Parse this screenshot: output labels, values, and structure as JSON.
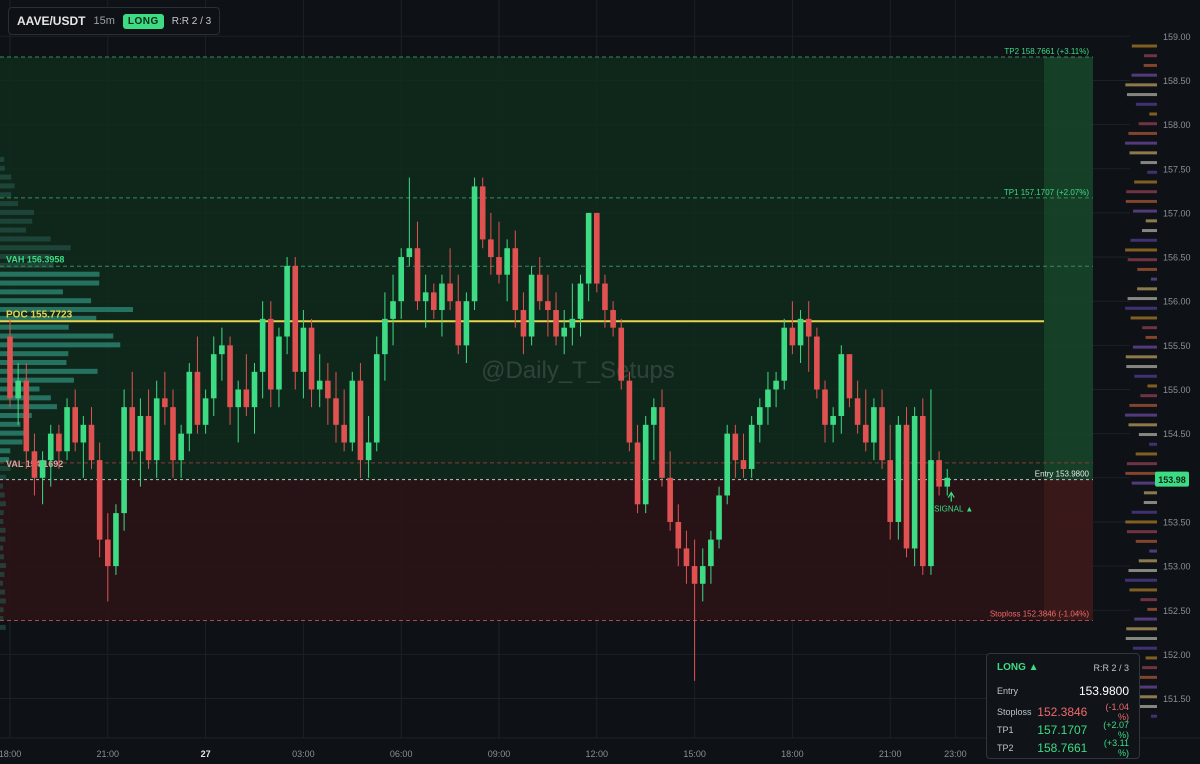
{
  "header": {
    "symbol": "AAVE/USDT",
    "timeframe": "15m",
    "side": "LONG",
    "rr": "R:R 2 / 3"
  },
  "watermark": "@Daily_T_Setups",
  "colors": {
    "up": "#3ddc84",
    "down": "#e05252",
    "poc": "#e8d44d",
    "target_zone": "#0f2b1c",
    "stop_zone": "#2a1416",
    "bg": "#0e1116"
  },
  "levels": {
    "tp2": {
      "price": 158.7661,
      "label": "TP2 158.7661 (+3.11%)"
    },
    "tp1": {
      "price": 157.1707,
      "label": "TP1 157.1707 (+2.07%)"
    },
    "vah": {
      "price": 156.3958,
      "label": "VAH 156.3958"
    },
    "poc": {
      "price": 155.7723,
      "label": "POC 155.7723"
    },
    "val": {
      "price": 154.1692,
      "label": "VAL 154.1692"
    },
    "entry": {
      "price": 153.98,
      "label": "Entry 153.9800",
      "tag": "153.98"
    },
    "stop": {
      "price": 152.3846,
      "label": "Stoploss 152.3846 (-1.04%)"
    }
  },
  "signal_label": "SIGNAL ▲",
  "trade_panel": {
    "side": "LONG ▲",
    "rr": "R:R 2 / 3",
    "rows": [
      {
        "label": "Entry",
        "value": "153.9800",
        "pct": ""
      },
      {
        "label": "Stoploss",
        "value": "152.3846",
        "pct": "(-1.04 %)"
      },
      {
        "label": "TP1",
        "value": "157.1707",
        "pct": "(+2.07 %)"
      },
      {
        "label": "TP2",
        "value": "158.7661",
        "pct": "(+3.11 %)"
      }
    ]
  },
  "chart_data": {
    "type": "candlestick",
    "ylim": [
      151.2,
      159.2
    ],
    "y_ticks": [
      151.5,
      152.0,
      152.5,
      153.0,
      153.5,
      154.0,
      154.5,
      155.0,
      155.5,
      156.0,
      156.5,
      157.0,
      157.5,
      158.0,
      158.5,
      159.0
    ],
    "y_tick_labels": [
      "151.50",
      "152.00",
      "152.50",
      "153.00",
      "153.50",
      "154.00",
      "154.50",
      "155.00",
      "155.50",
      "156.00",
      "156.50",
      "157.00",
      "157.50",
      "158.00",
      "158.50",
      "159.00"
    ],
    "x_ticks": [
      {
        "label": "18:00",
        "bar": 0
      },
      {
        "label": "21:00",
        "bar": 12
      },
      {
        "label": "27",
        "bar": 24,
        "bold": true
      },
      {
        "label": "03:00",
        "bar": 36
      },
      {
        "label": "06:00",
        "bar": 48
      },
      {
        "label": "09:00",
        "bar": 60
      },
      {
        "label": "12:00",
        "bar": 72
      },
      {
        "label": "15:00",
        "bar": 84
      },
      {
        "label": "18:00",
        "bar": 96
      },
      {
        "label": "21:00",
        "bar": 108
      },
      {
        "label": "23:00",
        "bar": 116
      }
    ],
    "ohlc": [
      [
        155.6,
        155.8,
        154.8,
        154.9
      ],
      [
        154.9,
        155.3,
        154.6,
        155.1
      ],
      [
        155.1,
        155.3,
        154.1,
        154.3
      ],
      [
        154.3,
        154.5,
        153.8,
        154.0
      ],
      [
        154.0,
        154.3,
        153.7,
        154.2
      ],
      [
        154.2,
        154.6,
        153.9,
        154.5
      ],
      [
        154.5,
        154.6,
        154.1,
        154.3
      ],
      [
        154.3,
        154.9,
        154.2,
        154.8
      ],
      [
        154.8,
        155.0,
        154.3,
        154.4
      ],
      [
        154.4,
        154.7,
        154.0,
        154.6
      ],
      [
        154.6,
        154.8,
        154.1,
        154.2
      ],
      [
        154.2,
        154.4,
        153.1,
        153.3
      ],
      [
        153.3,
        153.6,
        152.6,
        153.0
      ],
      [
        153.0,
        153.7,
        152.9,
        153.6
      ],
      [
        153.6,
        155.0,
        153.4,
        154.8
      ],
      [
        154.8,
        155.2,
        154.2,
        154.3
      ],
      [
        154.3,
        154.9,
        153.9,
        154.7
      ],
      [
        154.7,
        155.0,
        154.1,
        154.2
      ],
      [
        154.2,
        155.1,
        154.0,
        154.9
      ],
      [
        154.9,
        155.2,
        154.6,
        154.8
      ],
      [
        154.8,
        155.0,
        154.0,
        154.2
      ],
      [
        154.2,
        154.6,
        154.0,
        154.5
      ],
      [
        154.5,
        155.3,
        154.3,
        155.2
      ],
      [
        155.2,
        155.6,
        154.5,
        154.6
      ],
      [
        154.6,
        155.0,
        154.5,
        154.9
      ],
      [
        154.9,
        155.6,
        154.7,
        155.4
      ],
      [
        155.4,
        155.7,
        155.1,
        155.5
      ],
      [
        155.5,
        155.6,
        154.6,
        154.8
      ],
      [
        154.8,
        155.1,
        154.4,
        155.0
      ],
      [
        155.0,
        155.4,
        154.7,
        154.8
      ],
      [
        154.8,
        155.3,
        154.5,
        155.2
      ],
      [
        155.2,
        156.0,
        154.9,
        155.8
      ],
      [
        155.8,
        156.0,
        154.8,
        155.0
      ],
      [
        155.0,
        155.7,
        154.8,
        155.6
      ],
      [
        155.6,
        156.5,
        155.4,
        156.4
      ],
      [
        156.4,
        156.5,
        155.0,
        155.2
      ],
      [
        155.2,
        155.9,
        154.9,
        155.7
      ],
      [
        155.7,
        155.8,
        154.8,
        155.0
      ],
      [
        155.0,
        155.4,
        154.8,
        155.1
      ],
      [
        155.1,
        155.3,
        154.6,
        154.9
      ],
      [
        154.9,
        155.2,
        154.4,
        154.6
      ],
      [
        154.6,
        155.0,
        154.3,
        154.4
      ],
      [
        154.4,
        155.2,
        154.3,
        155.1
      ],
      [
        155.1,
        155.3,
        154.0,
        154.2
      ],
      [
        154.2,
        154.7,
        154.0,
        154.4
      ],
      [
        154.4,
        155.6,
        154.3,
        155.4
      ],
      [
        155.4,
        156.1,
        155.1,
        155.8
      ],
      [
        155.8,
        156.3,
        155.5,
        156.0
      ],
      [
        156.0,
        156.6,
        155.8,
        156.5
      ],
      [
        156.5,
        157.4,
        156.4,
        156.6
      ],
      [
        156.6,
        156.9,
        155.9,
        156.0
      ],
      [
        156.0,
        156.3,
        155.7,
        156.1
      ],
      [
        156.1,
        156.2,
        155.8,
        155.9
      ],
      [
        155.9,
        156.3,
        155.6,
        156.2
      ],
      [
        156.2,
        156.6,
        155.9,
        156.0
      ],
      [
        156.0,
        156.3,
        155.4,
        155.5
      ],
      [
        155.5,
        156.1,
        155.3,
        156.0
      ],
      [
        156.0,
        157.4,
        155.9,
        157.3
      ],
      [
        157.3,
        157.4,
        156.6,
        156.7
      ],
      [
        156.7,
        157.0,
        156.3,
        156.5
      ],
      [
        156.5,
        156.9,
        156.2,
        156.3
      ],
      [
        156.3,
        156.7,
        156.0,
        156.6
      ],
      [
        156.6,
        156.8,
        155.7,
        155.9
      ],
      [
        155.9,
        156.1,
        155.4,
        155.6
      ],
      [
        155.6,
        156.4,
        155.5,
        156.3
      ],
      [
        156.3,
        156.5,
        155.9,
        156.0
      ],
      [
        156.0,
        156.3,
        155.6,
        155.9
      ],
      [
        155.9,
        156.1,
        155.5,
        155.6
      ],
      [
        155.6,
        155.9,
        155.4,
        155.7
      ],
      [
        155.7,
        156.2,
        155.5,
        155.8
      ],
      [
        155.8,
        156.3,
        155.6,
        156.2
      ],
      [
        156.2,
        157.0,
        156.0,
        157.0
      ],
      [
        157.0,
        157.0,
        156.1,
        156.2
      ],
      [
        156.2,
        156.3,
        155.7,
        155.9
      ],
      [
        155.9,
        156.0,
        155.6,
        155.7
      ],
      [
        155.7,
        155.8,
        155.0,
        155.1
      ],
      [
        155.1,
        155.2,
        154.3,
        154.4
      ],
      [
        154.4,
        154.6,
        153.6,
        153.7
      ],
      [
        153.7,
        154.7,
        153.6,
        154.6
      ],
      [
        154.6,
        154.9,
        154.2,
        154.8
      ],
      [
        154.8,
        155.0,
        153.9,
        154.0
      ],
      [
        154.0,
        154.3,
        153.4,
        153.5
      ],
      [
        153.5,
        153.7,
        153.0,
        153.2
      ],
      [
        153.2,
        153.4,
        152.8,
        153.0
      ],
      [
        153.0,
        153.3,
        151.7,
        152.8
      ],
      [
        152.8,
        153.2,
        152.6,
        153.0
      ],
      [
        153.0,
        153.4,
        152.8,
        153.3
      ],
      [
        153.3,
        153.9,
        153.2,
        153.8
      ],
      [
        153.8,
        154.6,
        153.7,
        154.5
      ],
      [
        154.5,
        154.6,
        154.0,
        154.2
      ],
      [
        154.2,
        154.5,
        154.0,
        154.1
      ],
      [
        154.1,
        154.7,
        154.0,
        154.6
      ],
      [
        154.6,
        154.9,
        154.4,
        154.8
      ],
      [
        154.8,
        155.2,
        154.6,
        155.0
      ],
      [
        155.0,
        155.2,
        154.8,
        155.1
      ],
      [
        155.1,
        155.8,
        155.0,
        155.7
      ],
      [
        155.7,
        156.0,
        155.4,
        155.5
      ],
      [
        155.5,
        155.9,
        155.3,
        155.8
      ],
      [
        155.8,
        156.0,
        155.2,
        155.6
      ],
      [
        155.6,
        155.7,
        154.9,
        155.0
      ],
      [
        155.0,
        155.1,
        154.4,
        154.6
      ],
      [
        154.6,
        154.8,
        154.4,
        154.7
      ],
      [
        154.7,
        155.5,
        154.5,
        155.4
      ],
      [
        155.4,
        155.4,
        154.8,
        154.9
      ],
      [
        154.9,
        155.1,
        154.5,
        154.6
      ],
      [
        154.6,
        155.0,
        154.3,
        154.4
      ],
      [
        154.4,
        154.9,
        154.2,
        154.8
      ],
      [
        154.8,
        155.0,
        154.1,
        154.2
      ],
      [
        154.2,
        154.6,
        153.3,
        153.5
      ],
      [
        153.5,
        154.7,
        153.3,
        154.6
      ],
      [
        154.6,
        154.8,
        153.1,
        153.2
      ],
      [
        153.2,
        154.8,
        153.0,
        154.7
      ],
      [
        154.7,
        154.9,
        152.9,
        153.0
      ],
      [
        153.0,
        155.0,
        152.9,
        154.2
      ],
      [
        154.2,
        154.3,
        153.8,
        153.9
      ],
      [
        153.9,
        154.1,
        153.8,
        154.0
      ]
    ]
  }
}
